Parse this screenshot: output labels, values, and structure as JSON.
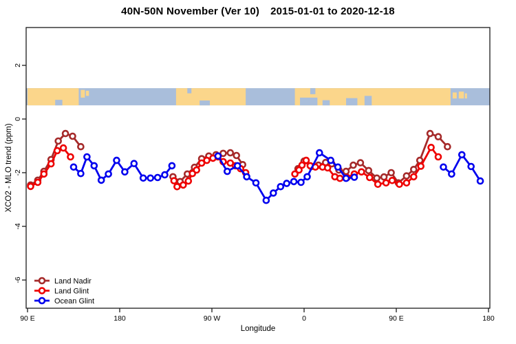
{
  "title": {
    "main": "40N-50N November (Ver 10)",
    "dates": "2015-01-01 to 2020-12-18"
  },
  "chart_data": {
    "type": "line",
    "title": "40N-50N November (Ver 10)  2015-01-01 to 2020-12-18",
    "xlabel": "Longitude",
    "ylabel": "XCO2 - MLO trend (ppm)",
    "grid": false,
    "legend_position": "bottom-left",
    "x_axis_note": "axis spans 450 deg of longitude starting at 90E, wrapping 90E-180-90W-0-90E-180; deg = offset from left edge",
    "xlim_deg": [
      0,
      450
    ],
    "ylim": [
      -7.05,
      3.41
    ],
    "x_ticks": [
      {
        "deg": 0,
        "label": "90 E"
      },
      {
        "deg": 90,
        "label": "180"
      },
      {
        "deg": 180,
        "label": "90 W"
      },
      {
        "deg": 270,
        "label": "0"
      },
      {
        "deg": 360,
        "label": "90 E"
      },
      {
        "deg": 450,
        "label": "180"
      }
    ],
    "y_ticks": [
      {
        "value": 2,
        "label": "2"
      },
      {
        "value": 0,
        "label": "0"
      },
      {
        "value": -2,
        "label": "-2"
      },
      {
        "value": -4,
        "label": "-4"
      },
      {
        "value": -6,
        "label": "-6"
      }
    ],
    "map_band": {
      "value_top": 1.15,
      "value_bottom": 0.51,
      "ocean_color": "#A9BEDB",
      "land_color": "#FBD68B",
      "land_segments": [
        [
          0,
          50
        ],
        [
          145,
          213
        ],
        [
          261,
          413
        ]
      ],
      "islands": [
        {
          "range": [
            52,
            56
          ],
          "top": 0.1,
          "frac": 0.45
        },
        {
          "range": [
            57,
            60
          ],
          "top": 0.15,
          "frac": 0.3
        },
        {
          "range": [
            415,
            419
          ],
          "top": 0.25,
          "frac": 0.35
        },
        {
          "range": [
            421,
            426
          ],
          "top": 0.2,
          "frac": 0.4
        },
        {
          "range": [
            427,
            429
          ],
          "top": 0.3,
          "frac": 0.3
        }
      ],
      "ocean_notches": [
        {
          "range": [
            27,
            34
          ],
          "frac": 0.32,
          "from": "bottom"
        },
        {
          "range": [
            168,
            178
          ],
          "frac": 0.28,
          "from": "bottom"
        },
        {
          "range": [
            266,
            283
          ],
          "frac": 0.45,
          "from": "bottom"
        },
        {
          "range": [
            288,
            295
          ],
          "frac": 0.3,
          "from": "bottom"
        },
        {
          "range": [
            311,
            322
          ],
          "frac": 0.42,
          "from": "bottom"
        },
        {
          "range": [
            329,
            336
          ],
          "frac": 0.55,
          "from": "bottom"
        },
        {
          "range": [
            156,
            160
          ],
          "frac": 0.3,
          "from": "top"
        },
        {
          "range": [
            276,
            281
          ],
          "frac": 0.35,
          "from": "top"
        }
      ]
    },
    "series": [
      {
        "name": "Land Nadir",
        "color": "#A52A2A",
        "segments": [
          [
            [
              3,
              -2.46
            ],
            [
              10,
              -2.28
            ],
            [
              16,
              -1.95
            ],
            [
              23,
              -1.51
            ],
            [
              30,
              -0.82
            ],
            [
              37,
              -0.54
            ],
            [
              44,
              -0.64
            ],
            [
              52,
              -1.03
            ]
          ],
          [
            [
              142,
              -2.15
            ],
            [
              149,
              -2.33
            ],
            [
              156,
              -2.05
            ],
            [
              163,
              -1.8
            ],
            [
              170,
              -1.48
            ],
            [
              177,
              -1.38
            ],
            [
              184,
              -1.33
            ],
            [
              191,
              -1.28
            ],
            [
              198,
              -1.26
            ],
            [
              204,
              -1.36
            ],
            [
              210,
              -1.7
            ]
          ],
          [
            [
              264,
              -1.85
            ],
            [
              270,
              -1.57
            ],
            [
              277,
              -1.77
            ],
            [
              284,
              -1.72
            ],
            [
              291,
              -1.62
            ],
            [
              297,
              -1.67
            ],
            [
              304,
              -1.9
            ],
            [
              311,
              -1.95
            ],
            [
              318,
              -1.72
            ],
            [
              325,
              -1.63
            ],
            [
              333,
              -1.92
            ],
            [
              341,
              -2.2
            ],
            [
              348,
              -2.16
            ],
            [
              355,
              -2.0
            ],
            [
              362,
              -2.38
            ],
            [
              370,
              -2.12
            ],
            [
              377,
              -1.88
            ],
            [
              383,
              -1.54
            ],
            [
              393,
              -0.54
            ],
            [
              401,
              -0.66
            ],
            [
              410,
              -1.03
            ]
          ]
        ]
      },
      {
        "name": "Land Glint",
        "color": "#EE0000",
        "segments": [
          [
            [
              3,
              -2.51
            ],
            [
              10,
              -2.36
            ],
            [
              16,
              -2.05
            ],
            [
              23,
              -1.67
            ],
            [
              29,
              -1.18
            ],
            [
              35,
              -1.08
            ],
            [
              42,
              -1.41
            ]
          ],
          [
            [
              143,
              -2.3
            ],
            [
              146,
              -2.52
            ],
            [
              152,
              -2.46
            ],
            [
              157,
              -2.31
            ],
            [
              161,
              -2.03
            ],
            [
              165,
              -1.9
            ],
            [
              170,
              -1.64
            ],
            [
              175,
              -1.54
            ],
            [
              181,
              -1.46
            ],
            [
              186,
              -1.41
            ],
            [
              191,
              -1.59
            ],
            [
              198,
              -1.64
            ],
            [
              203,
              -1.74
            ],
            [
              208,
              -1.85
            ],
            [
              213,
              -2.0
            ]
          ],
          [
            [
              261,
              -2.05
            ],
            [
              265,
              -1.9
            ],
            [
              268,
              -1.72
            ],
            [
              272,
              -1.54
            ],
            [
              276,
              -1.74
            ],
            [
              281,
              -1.79
            ],
            [
              288,
              -1.79
            ],
            [
              293,
              -1.82
            ],
            [
              300,
              -2.15
            ],
            [
              305,
              -2.21
            ],
            [
              312,
              -2.18
            ],
            [
              319,
              -2.05
            ],
            [
              326,
              -1.97
            ],
            [
              334,
              -2.18
            ],
            [
              342,
              -2.43
            ],
            [
              350,
              -2.38
            ],
            [
              356,
              -2.29
            ],
            [
              363,
              -2.43
            ],
            [
              370,
              -2.38
            ],
            [
              377,
              -2.15
            ],
            [
              384,
              -1.76
            ],
            [
              394,
              -1.06
            ],
            [
              401,
              -1.41
            ]
          ]
        ]
      },
      {
        "name": "Ocean Glint",
        "color": "#0000EE",
        "segments": [
          [
            [
              45,
              -1.79
            ],
            [
              52,
              -2.03
            ],
            [
              58,
              -1.41
            ],
            [
              65,
              -1.74
            ],
            [
              72,
              -2.28
            ],
            [
              79,
              -2.05
            ],
            [
              87,
              -1.54
            ],
            [
              95,
              -1.97
            ],
            [
              104,
              -1.66
            ],
            [
              113,
              -2.2
            ],
            [
              120,
              -2.2
            ],
            [
              127,
              -2.18
            ],
            [
              134,
              -2.08
            ],
            [
              141,
              -1.74
            ]
          ],
          [
            [
              186,
              -1.38
            ],
            [
              195,
              -1.95
            ],
            [
              205,
              -1.74
            ],
            [
              214,
              -2.15
            ],
            [
              223,
              -2.38
            ],
            [
              233,
              -3.03
            ],
            [
              240,
              -2.76
            ],
            [
              247,
              -2.52
            ],
            [
              253,
              -2.4
            ],
            [
              260,
              -2.33
            ],
            [
              267,
              -2.36
            ],
            [
              273,
              -2.15
            ],
            [
              285,
              -1.26
            ],
            [
              296,
              -1.54
            ],
            [
              303,
              -1.79
            ],
            [
              311,
              -2.21
            ],
            [
              319,
              -2.17
            ]
          ],
          [
            [
              406,
              -1.79
            ],
            [
              414,
              -2.05
            ],
            [
              424,
              -1.33
            ],
            [
              433,
              -1.77
            ],
            [
              442,
              -2.31
            ]
          ]
        ]
      }
    ],
    "legend_entries": [
      "Land Nadir",
      "Land Glint",
      "Ocean Glint"
    ]
  }
}
